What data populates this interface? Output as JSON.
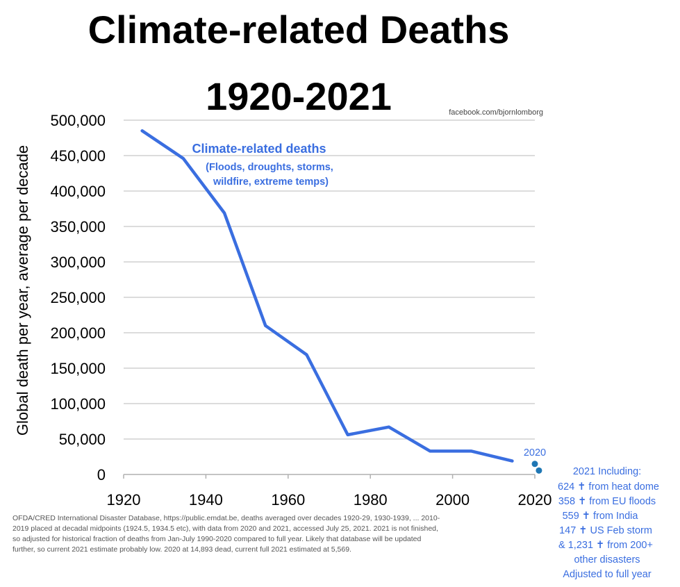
{
  "chart_data": {
    "type": "line",
    "title_line1": "Climate-related Deaths",
    "title_line2": "1920-2021",
    "credit": "facebook.com/bjornlomborg",
    "ylabel": "Global death per year, average per decade",
    "xlabel": "",
    "xlim": [
      1920,
      2020
    ],
    "ylim": [
      0,
      500000
    ],
    "x_ticks": [
      "1920",
      "1940",
      "1960",
      "1980",
      "2000",
      "2020"
    ],
    "y_ticks": [
      "0",
      "50,000",
      "100,000",
      "150,000",
      "200,000",
      "250,000",
      "300,000",
      "350,000",
      "400,000",
      "450,000",
      "500,000"
    ],
    "series": [
      {
        "name": "Climate-related deaths",
        "color": "#3a6ee0",
        "x": [
          1924.5,
          1934.5,
          1944.5,
          1954.5,
          1964.5,
          1974.5,
          1984.5,
          1994.5,
          2004.5,
          2014.5
        ],
        "values": [
          485000,
          446000,
          369000,
          210000,
          169000,
          56000,
          67000,
          33000,
          33000,
          19000
        ]
      }
    ],
    "points": [
      {
        "label": "2020",
        "x": 2020,
        "value": 14893,
        "color": "#1f77b4"
      },
      {
        "label": "2021",
        "x": 2021,
        "value": 5569,
        "color": "#1f77b4"
      }
    ],
    "series_annotation": {
      "title": "Climate-related deaths",
      "lines": [
        "(Floods, droughts, storms,",
        "wildfire, extreme temps)"
      ]
    },
    "point_label_2020": "2020",
    "side_note": [
      "2021 Including:",
      "624 ✝ from heat dome",
      "358 ✝ from EU floods",
      "559 ✝ from India",
      "147 ✝ US Feb storm",
      "& 1,231 ✝ from 200+",
      "other disasters",
      "Adjusted to full year"
    ],
    "source": [
      "OFDA/CRED International Disaster Database, https://public.emdat.be, deaths averaged over decades 1920-29, 1930-1939, ... 2010-",
      "2019 placed at decadal midpoints (1924.5, 1934.5 etc), with data from 2020 and 2021, accessed July 25, 2021. 2021 is not finished,",
      "so adjusted for historical fraction of deaths from Jan-July 1990-2020 compared to full year. Likely that database will be updated",
      "further, so current 2021 estimate probably low. 2020 at 14,893 dead, current full 2021 estimated at 5,569."
    ]
  }
}
